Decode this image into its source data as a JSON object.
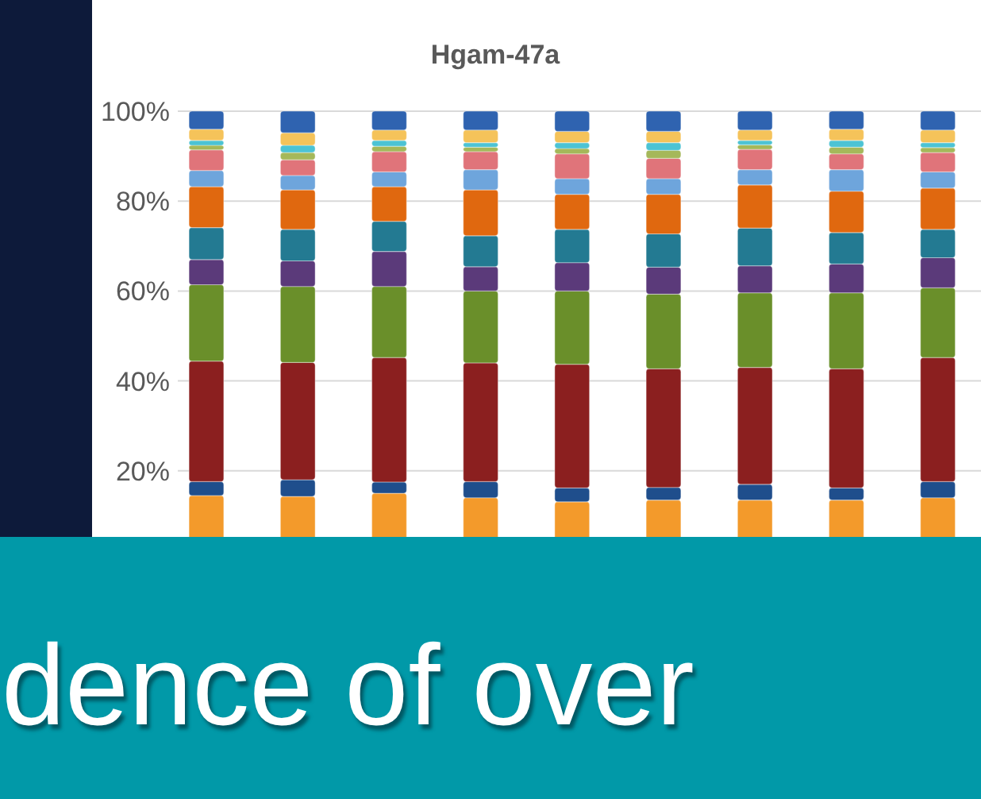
{
  "chart_data": {
    "type": "bar",
    "title": "Hgam-47a",
    "stacked": true,
    "categories": [
      null,
      null,
      null,
      null,
      null,
      null,
      null,
      null,
      null
    ],
    "ylim": [
      0,
      100
    ],
    "yticks": [
      {
        "value": 20,
        "label": "20%"
      },
      {
        "value": 40,
        "label": "40%"
      },
      {
        "value": 60,
        "label": "60%"
      },
      {
        "value": 80,
        "label": "80%"
      },
      {
        "value": 100,
        "label": "100%"
      }
    ],
    "grid": "y",
    "annotations": [
      "dence of over"
    ],
    "series": [
      {
        "color": "#f39a2b",
        "values": [
          14.5,
          14.3,
          15,
          14,
          13.1,
          13.5,
          13.5,
          13.5,
          14
        ]
      },
      {
        "color": "#1f4e8c",
        "values": [
          3.1,
          3.7,
          2.5,
          3.6,
          3.1,
          2.8,
          3.5,
          2.7,
          3.6
        ]
      },
      {
        "color": "#8b1f1f",
        "values": [
          26.8,
          26.1,
          27.7,
          26.4,
          27.5,
          26.4,
          26,
          26.5,
          27.6
        ]
      },
      {
        "color": "#6a8f2a",
        "values": [
          17,
          16.9,
          15.8,
          16,
          16.3,
          16.6,
          16.6,
          16.9,
          15.5
        ]
      },
      {
        "color": "#5b3a7a",
        "values": [
          5.6,
          5.7,
          7.8,
          5.4,
          6.3,
          6,
          6,
          6.4,
          6.7
        ]
      },
      {
        "color": "#237a92",
        "values": [
          7.1,
          7,
          6.7,
          6.9,
          7.4,
          7.4,
          8.4,
          7,
          6.3
        ]
      },
      {
        "color": "#e0680f",
        "values": [
          9.1,
          8.8,
          7.7,
          10.2,
          7.8,
          8.8,
          9.6,
          9.2,
          9.2
        ]
      },
      {
        "color": "#6ea5dc",
        "values": [
          3.6,
          3.2,
          3.3,
          4.5,
          3.5,
          3.5,
          3.4,
          4.8,
          3.6
        ]
      },
      {
        "color": "#e0747a",
        "values": [
          4.6,
          3.5,
          4.5,
          4,
          5.5,
          4.5,
          4.5,
          3.5,
          4.3
        ]
      },
      {
        "color": "#a5b85a",
        "values": [
          1,
          1.6,
          1.2,
          1,
          1.2,
          1.8,
          1,
          1.5,
          1.1
        ]
      },
      {
        "color": "#4cc3d4",
        "values": [
          1.1,
          1.6,
          1.3,
          1,
          1.3,
          1.7,
          1,
          1.5,
          1.1
        ]
      },
      {
        "color": "#f5c35a",
        "values": [
          2.5,
          2.8,
          2.3,
          2.8,
          2.5,
          2.5,
          2.3,
          2.5,
          2.8
        ]
      },
      {
        "color": "#2f63b0",
        "values": [
          4,
          4.8,
          4.2,
          4.2,
          4.5,
          4.5,
          4.2,
          4,
          4.2
        ]
      }
    ]
  }
}
